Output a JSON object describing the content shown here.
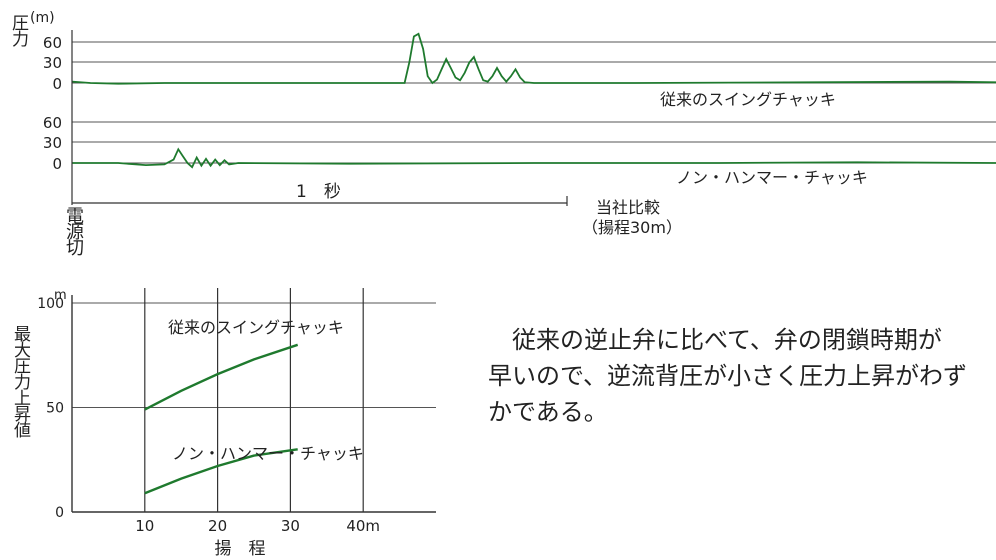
{
  "colors": {
    "trace": "#1f7a2e",
    "grid": "#555555",
    "text": "#222222"
  },
  "chart_data": [
    {
      "type": "line",
      "title": "",
      "ylabel": "圧力",
      "yunit": "(m)",
      "panels": [
        {
          "label": "従来のスイングチャッキ",
          "yticks": [
            "60",
            "30",
            "0"
          ],
          "trace_profile": [
            [
              0,
              2
            ],
            [
              0.02,
              0
            ],
            [
              0.05,
              -1
            ],
            [
              0.1,
              0
            ],
            [
              0.2,
              0
            ],
            [
              0.3,
              0
            ],
            [
              0.36,
              0
            ],
            [
              0.365,
              30
            ],
            [
              0.37,
              68
            ],
            [
              0.375,
              72
            ],
            [
              0.38,
              50
            ],
            [
              0.385,
              10
            ],
            [
              0.39,
              0
            ],
            [
              0.395,
              5
            ],
            [
              0.4,
              20
            ],
            [
              0.405,
              35
            ],
            [
              0.41,
              22
            ],
            [
              0.415,
              8
            ],
            [
              0.42,
              4
            ],
            [
              0.425,
              15
            ],
            [
              0.43,
              30
            ],
            [
              0.435,
              38
            ],
            [
              0.44,
              20
            ],
            [
              0.445,
              4
            ],
            [
              0.45,
              2
            ],
            [
              0.455,
              10
            ],
            [
              0.46,
              22
            ],
            [
              0.465,
              10
            ],
            [
              0.47,
              2
            ],
            [
              0.475,
              10
            ],
            [
              0.48,
              20
            ],
            [
              0.485,
              8
            ],
            [
              0.49,
              1
            ],
            [
              0.5,
              0
            ],
            [
              0.6,
              0
            ],
            [
              0.8,
              1
            ],
            [
              0.95,
              2
            ],
            [
              1,
              1
            ]
          ]
        },
        {
          "label": "ノン・ハンマー・チャッキ",
          "yticks": [
            "60",
            "30",
            "0"
          ],
          "trace_profile": [
            [
              0,
              0
            ],
            [
              0.05,
              0
            ],
            [
              0.08,
              -3
            ],
            [
              0.1,
              -2
            ],
            [
              0.11,
              5
            ],
            [
              0.115,
              20
            ],
            [
              0.12,
              10
            ],
            [
              0.125,
              0
            ],
            [
              0.13,
              -6
            ],
            [
              0.135,
              8
            ],
            [
              0.14,
              -4
            ],
            [
              0.145,
              6
            ],
            [
              0.15,
              -4
            ],
            [
              0.155,
              5
            ],
            [
              0.16,
              -3
            ],
            [
              0.165,
              4
            ],
            [
              0.17,
              -2
            ],
            [
              0.18,
              0
            ],
            [
              0.3,
              -1
            ],
            [
              0.5,
              0
            ],
            [
              0.7,
              0
            ],
            [
              0.85,
              1
            ],
            [
              1,
              0
            ]
          ]
        }
      ],
      "time_annotation": "1　秒",
      "source_note": [
        "当社比較",
        "（揚程30m）"
      ],
      "event_label": "電源切"
    },
    {
      "type": "line",
      "title": "",
      "xlabel": "揚　程",
      "ylabel": "最大圧力上昇値",
      "yunit": "m",
      "xlim": [
        0,
        50
      ],
      "ylim": [
        0,
        100
      ],
      "xticks": [
        "10",
        "20",
        "30",
        "40m"
      ],
      "yticks": [
        "100",
        "50",
        "0"
      ],
      "grid": true,
      "series": [
        {
          "name": "従来のスイングチャッキ",
          "x": [
            10,
            15,
            20,
            25,
            31
          ],
          "y": [
            49,
            58,
            66,
            73,
            80
          ]
        },
        {
          "name": "ノン・ハンマー・チャッキ",
          "x": [
            10,
            15,
            20,
            25,
            31
          ],
          "y": [
            9,
            16,
            22,
            27,
            30
          ]
        }
      ]
    }
  ],
  "description": {
    "lines": [
      "　従来の逆止弁に比べて、弁の閉鎖時期が",
      "早いので、逆流背圧が小さく圧力上昇がわず",
      "かである。"
    ]
  }
}
